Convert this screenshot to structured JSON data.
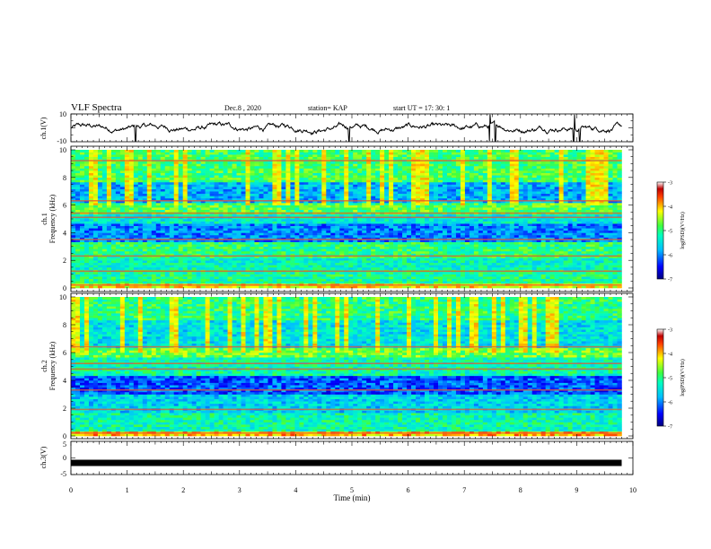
{
  "header": {
    "title": "VLF Spectra",
    "date": "Dec.8 , 2020",
    "station": "station= KAP",
    "start": "start UT = 17: 30: 1"
  },
  "chart_data": [
    {
      "type": "line",
      "panel": "ch1-waveform",
      "ylabel": "ch.1(V)",
      "ylim": [
        -10,
        10
      ],
      "y_ticks": [
        "10",
        "-10"
      ],
      "xlim": [
        0,
        10
      ],
      "x_end": 9.8,
      "color": "#000000",
      "description_values": {
        "baseline": 0,
        "typical_range": [
          -4,
          3
        ],
        "spike_times": [
          1.15,
          4.95,
          7.45,
          7.55,
          8.95,
          9.05
        ]
      }
    },
    {
      "type": "heatmap",
      "panel": "ch1-spectrogram",
      "ylabel": "ch.1\nFrequency (kHz)",
      "ylabel_lines": [
        "ch.1",
        "Frequency (kHz)"
      ],
      "ylim": [
        0,
        10
      ],
      "y_ticks": [
        "0",
        "2",
        "4",
        "6",
        "8",
        "10"
      ],
      "xlim": [
        0,
        10
      ],
      "x_end": 9.8,
      "colorbar": {
        "label": "log(PSD)(V²/Hz)",
        "range": [
          -7,
          -3
        ],
        "ticks": [
          "-3",
          "-4",
          "-5",
          "-6",
          "-7"
        ]
      },
      "bands": [
        {
          "f": [
            0,
            0.4
          ],
          "level": -4.2
        },
        {
          "f": [
            0.4,
            1.4
          ],
          "level": -5.1
        },
        {
          "f": [
            1.4,
            2.2
          ],
          "level": -5.3
        },
        {
          "f": [
            2.2,
            3.4
          ],
          "level": -5.0
        },
        {
          "f": [
            3.4,
            4.6
          ],
          "level": -6.0
        },
        {
          "f": [
            4.6,
            5.4
          ],
          "level": -5.4
        },
        {
          "f": [
            5.4,
            6.2
          ],
          "level": -4.8
        },
        {
          "f": [
            6.2,
            7.6
          ],
          "level": -5.8
        },
        {
          "f": [
            7.6,
            10
          ],
          "level": -4.9
        }
      ],
      "lines_khz": [
        0.2,
        1.2,
        2.3,
        3.5,
        5.1,
        5.4,
        6.3,
        9.2
      ]
    },
    {
      "type": "heatmap",
      "panel": "ch2-spectrogram",
      "ylabel": "ch.2\nFrequency (kHz)",
      "ylabel_lines": [
        "ch.2",
        "Frequency (kHz)"
      ],
      "ylim": [
        0,
        10
      ],
      "y_ticks": [
        "0",
        "2",
        "4",
        "6",
        "8",
        "10"
      ],
      "xlim": [
        0,
        10
      ],
      "x_end": 9.8,
      "colorbar": {
        "label": "log(PSD)(V²/Hz)",
        "range": [
          -7,
          -3
        ],
        "ticks": [
          "-3",
          "-4",
          "-5",
          "-6",
          "-7"
        ]
      },
      "bands": [
        {
          "f": [
            0,
            0.3
          ],
          "level": -4.0
        },
        {
          "f": [
            0.3,
            1.6
          ],
          "level": -5.2
        },
        {
          "f": [
            1.6,
            3.0
          ],
          "level": -5.6
        },
        {
          "f": [
            3.0,
            4.4
          ],
          "level": -6.2
        },
        {
          "f": [
            4.4,
            5.6
          ],
          "level": -5.2
        },
        {
          "f": [
            5.6,
            6.4
          ],
          "level": -4.7
        },
        {
          "f": [
            6.4,
            8.4
          ],
          "level": -5.5
        },
        {
          "f": [
            8.4,
            10
          ],
          "level": -5.0
        }
      ],
      "lines_khz": [
        0.2,
        1.9,
        3.3,
        4.8,
        5.2,
        6.4
      ]
    },
    {
      "type": "line",
      "panel": "ch3-waveform",
      "ylabel": "ch.3(V)",
      "ylim": [
        -5,
        5
      ],
      "y_ticks": [
        "5",
        "0",
        "-5"
      ],
      "xlim": [
        0,
        10
      ],
      "x_end": 9.8,
      "xlabel": "Time (min)",
      "x_ticks": [
        "0",
        "1",
        "2",
        "3",
        "4",
        "5",
        "6",
        "7",
        "8",
        "9",
        "10"
      ],
      "series": [
        {
          "values_constant": -1.5
        }
      ]
    }
  ]
}
